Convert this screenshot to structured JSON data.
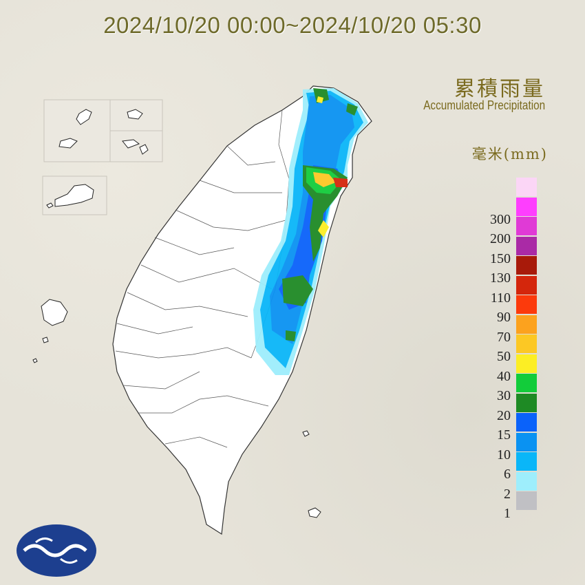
{
  "title": "2024/10/20 00:00~2024/10/20 05:30",
  "legend": {
    "title_zh": "累積雨量",
    "title_en": "Accumulated Precipitation",
    "unit": "毫米(mm)",
    "levels": [
      {
        "label": "",
        "color": "#fbd6f6"
      },
      {
        "label": "300",
        "color": "#fe3efe"
      },
      {
        "label": "200",
        "color": "#e03ad6"
      },
      {
        "label": "150",
        "color": "#aa2aa6"
      },
      {
        "label": "130",
        "color": "#a81a0a"
      },
      {
        "label": "110",
        "color": "#d4260c"
      },
      {
        "label": "90",
        "color": "#fc3a0c"
      },
      {
        "label": "70",
        "color": "#fca21e"
      },
      {
        "label": "50",
        "color": "#fcc824"
      },
      {
        "label": "40",
        "color": "#fcee24"
      },
      {
        "label": "30",
        "color": "#12cc3a"
      },
      {
        "label": "20",
        "color": "#1e8a24"
      },
      {
        "label": "15",
        "color": "#0a62fa"
      },
      {
        "label": "10",
        "color": "#0a92f2"
      },
      {
        "label": "6",
        "color": "#0ab6f8"
      },
      {
        "label": "2",
        "color": "#9eeefc"
      },
      {
        "label": "1",
        "color": "#c0c0c4"
      }
    ]
  },
  "logo": "central-weather-administration-logo"
}
